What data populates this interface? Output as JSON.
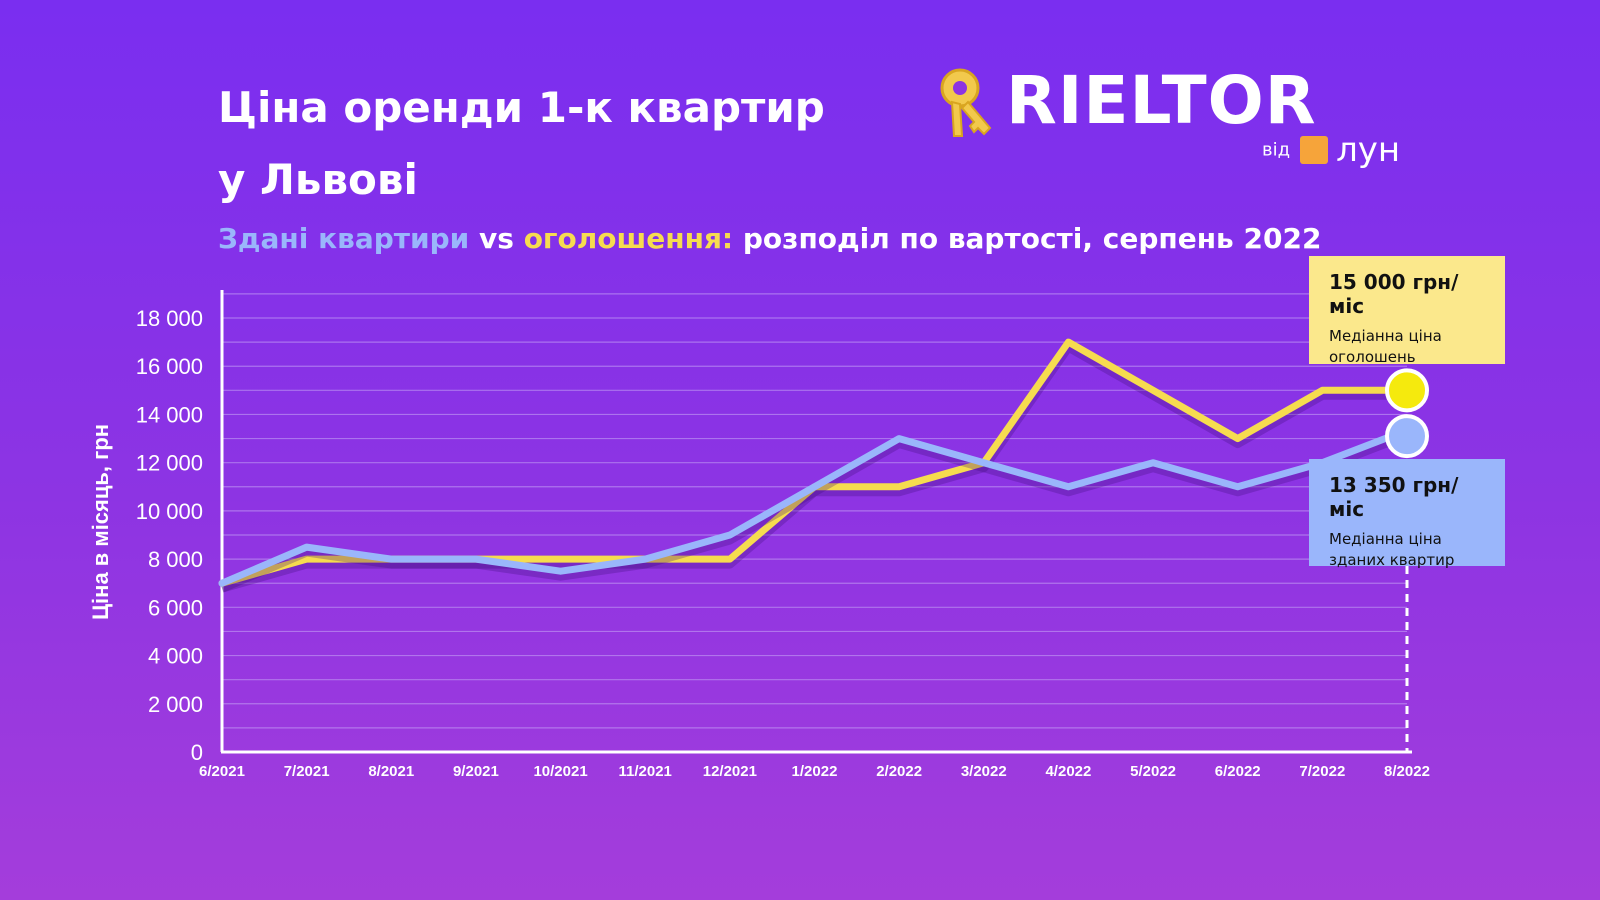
{
  "title_lines": [
    "Ціна оренди 1-к квартир",
    "у Львові"
  ],
  "subtitle": {
    "part1": "Здані квартири",
    "part2": " vs ",
    "part3": "оголошення:",
    "part4": " розподіл по вартості, серпень 2022"
  },
  "logo": {
    "word": "RIELTOR",
    "vid": "від",
    "lun": "лун"
  },
  "colors": {
    "rented": "#9ab6fb",
    "listings": "#f6dc4f",
    "listings_marker": "#f5ea0d",
    "grid": "#c9a8f5",
    "callout_yellow": "#fbe88c",
    "callout_blue": "#9ab6fb"
  },
  "callouts": {
    "listings": {
      "value": "15 000 грн/міс",
      "label_line1": "Медіанна ціна",
      "label_line2": "оголошень"
    },
    "rented": {
      "value": "13 350 грн/міс",
      "label_line1": "Медіанна ціна",
      "label_line2": "зданих квартир"
    }
  },
  "chart_data": {
    "type": "line",
    "title": "Ціна оренди 1-к квартир у Львові",
    "subtitle": "Здані квартири vs оголошення: розподіл по вартості, серпень 2022",
    "ylabel": "Ціна в місяць, грн",
    "xlabel": "",
    "ylim": [
      0,
      19000
    ],
    "yticks": [
      0,
      2000,
      4000,
      6000,
      8000,
      10000,
      12000,
      14000,
      16000,
      18000
    ],
    "ytick_labels": [
      "0",
      "2 000",
      "4 000",
      "6 000",
      "8 000",
      "10 000",
      "12 000",
      "14 000",
      "16 000",
      "18 000"
    ],
    "grid": true,
    "categories": [
      "6/2021",
      "7/2021",
      "8/2021",
      "9/2021",
      "10/2021",
      "11/2021",
      "12/2021",
      "1/2022",
      "2/2022",
      "3/2022",
      "4/2022",
      "5/2022",
      "6/2022",
      "7/2022",
      "8/2022"
    ],
    "series": [
      {
        "key": "listings",
        "values": [
          7000,
          8000,
          8000,
          8000,
          8000,
          8000,
          8000,
          11000,
          11000,
          12000,
          17000,
          15000,
          13000,
          15000,
          15000
        ]
      },
      {
        "key": "rented",
        "values": [
          7000,
          8500,
          8000,
          8000,
          7500,
          8000,
          9000,
          11000,
          13000,
          12000,
          11000,
          12000,
          11000,
          12000,
          13350
        ]
      }
    ]
  }
}
